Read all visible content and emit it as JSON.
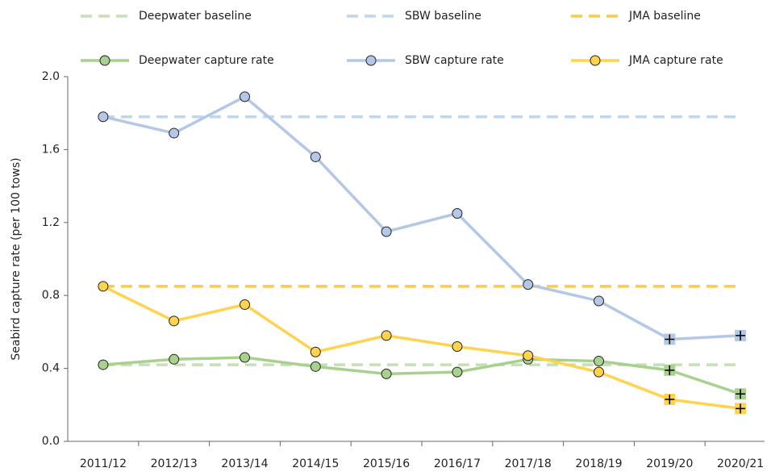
{
  "chart_data": {
    "type": "line",
    "y_label": "Seabird capture rate (per 100 tows)",
    "categories": [
      "2011/12",
      "2012/13",
      "2013/14",
      "2014/15",
      "2015/16",
      "2016/17",
      "2017/18",
      "2018/19",
      "2019/20",
      "2020/21"
    ],
    "ylim": [
      0,
      2
    ],
    "yticks": [
      {
        "value": 0,
        "label": "0.0"
      },
      0.4,
      0.8,
      1.2,
      1.6,
      {
        "value": 2,
        "label": "2.0"
      }
    ],
    "grid": false,
    "legend": "top",
    "series": [
      {
        "name": "Deepwater baseline",
        "color": "#c5e0b4",
        "style": "dashed",
        "value": 0.42
      },
      {
        "name": "SBW baseline",
        "color": "#bdd7ee",
        "style": "dashed",
        "value": 1.78
      },
      {
        "name": "JMA baseline",
        "color": "#ffc94a",
        "style": "dashed",
        "value": 0.85
      },
      {
        "name": "Deepwater capture rate",
        "color": "#a9d18e",
        "style": "solid",
        "markers": [
          "circle",
          "circle",
          "circle",
          "circle",
          "circle",
          "circle",
          "circle",
          "circle",
          "plus",
          "plus"
        ],
        "values": [
          0.42,
          0.45,
          0.46,
          0.41,
          0.37,
          0.38,
          0.45,
          0.44,
          0.39,
          0.26
        ]
      },
      {
        "name": "SBW capture rate",
        "color": "#b4c7e7",
        "style": "solid",
        "markers": [
          "circle",
          "circle",
          "circle",
          "circle",
          "circle",
          "circle",
          "circle",
          "circle",
          "plus",
          "plus"
        ],
        "values": [
          1.78,
          1.69,
          1.89,
          1.56,
          1.15,
          1.25,
          0.86,
          0.77,
          0.56,
          0.58
        ]
      },
      {
        "name": "JMA capture rate",
        "color": "#ffd34d",
        "style": "solid",
        "markers": [
          "circle",
          "circle",
          "circle",
          "circle",
          "circle",
          "circle",
          "circle",
          "circle",
          "plus",
          "plus"
        ],
        "values": [
          0.85,
          0.66,
          0.75,
          0.49,
          0.58,
          0.52,
          0.47,
          0.38,
          0.23,
          0.18
        ]
      }
    ]
  }
}
